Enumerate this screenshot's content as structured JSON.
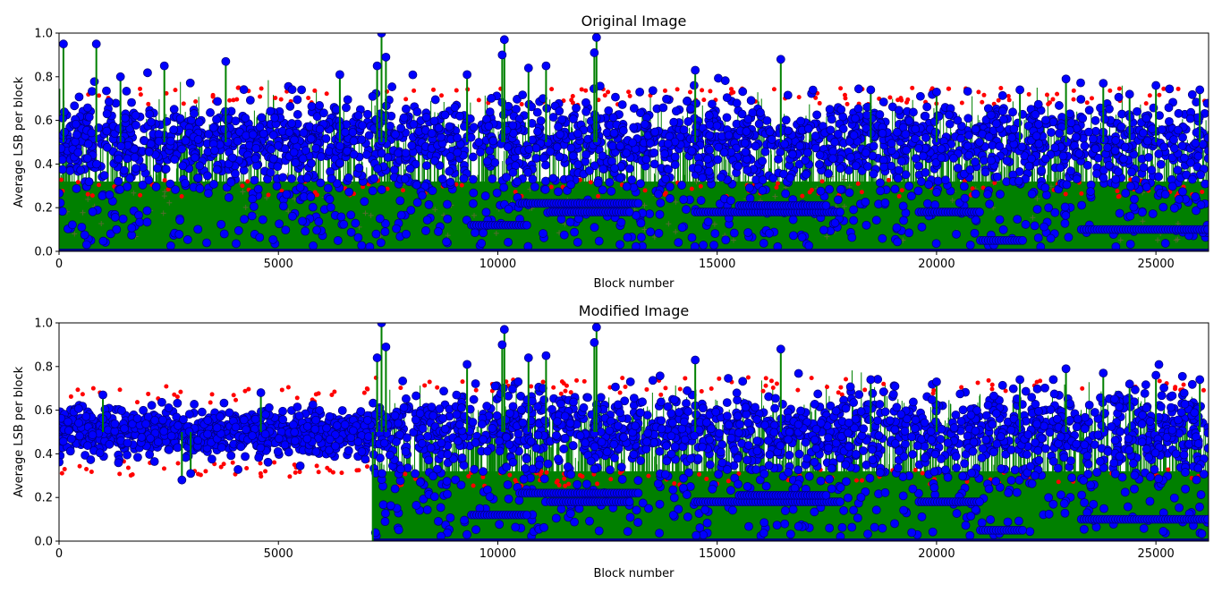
{
  "chart_data": [
    {
      "type": "scatter",
      "title": "Original Image",
      "xlabel": "Block number",
      "ylabel": "Average LSB per block",
      "xlim": [
        0,
        26200
      ],
      "ylim": [
        0,
        1.0
      ],
      "xticks": [
        0,
        5000,
        10000,
        15000,
        20000,
        25000
      ],
      "yticks": [
        0.0,
        0.2,
        0.4,
        0.6,
        0.8,
        1.0
      ],
      "xtick_labels": [
        "0",
        "5000",
        "10000",
        "15000",
        "20000",
        "25000"
      ],
      "ytick_labels": [
        "0.0",
        "0.2",
        "0.4",
        "0.6",
        "0.8",
        "1.0"
      ],
      "grid": false,
      "legend": false,
      "band_center": 0.5,
      "band_halfwidth": 0.17,
      "green_region": [
        0,
        26200
      ],
      "colors": {
        "stem": "#008000",
        "marker_face": "#0000ff",
        "marker_edge": "#000080",
        "accent": "#ff0000",
        "plus": "#556b2f"
      },
      "spikes": [
        [
          7350,
          1.0
        ],
        [
          10150,
          0.97
        ],
        [
          12250,
          0.98
        ],
        [
          850,
          0.95
        ],
        [
          100,
          0.95
        ],
        [
          7450,
          0.89
        ],
        [
          16450,
          0.88
        ],
        [
          12200,
          0.91
        ],
        [
          3800,
          0.87
        ],
        [
          10100,
          0.9
        ],
        [
          7250,
          0.85
        ],
        [
          10700,
          0.84
        ],
        [
          11100,
          0.85
        ],
        [
          14500,
          0.83
        ],
        [
          9300,
          0.81
        ],
        [
          6400,
          0.81
        ],
        [
          22950,
          0.79
        ],
        [
          23800,
          0.77
        ],
        [
          25000,
          0.76
        ],
        [
          20000,
          0.73
        ],
        [
          18500,
          0.74
        ],
        [
          21900,
          0.74
        ],
        [
          24400,
          0.72
        ],
        [
          26000,
          0.74
        ],
        [
          2400,
          0.85
        ],
        [
          1400,
          0.8
        ]
      ],
      "plateaus": [
        [
          9400,
          10700,
          0.12
        ],
        [
          10500,
          13200,
          0.22
        ],
        [
          11200,
          13000,
          0.18
        ],
        [
          14500,
          17800,
          0.18
        ],
        [
          15500,
          17500,
          0.21
        ],
        [
          19600,
          21000,
          0.18
        ],
        [
          23300,
          26200,
          0.1
        ],
        [
          21000,
          22000,
          0.05
        ]
      ],
      "zero_line": [
        0,
        26200
      ]
    },
    {
      "type": "scatter",
      "title": "Modified Image",
      "xlabel": "Block number",
      "ylabel": "Average LSB per block",
      "xlim": [
        0,
        26200
      ],
      "ylim": [
        0,
        1.0
      ],
      "xticks": [
        0,
        5000,
        10000,
        15000,
        20000,
        25000
      ],
      "yticks": [
        0.0,
        0.2,
        0.4,
        0.6,
        0.8,
        1.0
      ],
      "xtick_labels": [
        "0",
        "5000",
        "10000",
        "15000",
        "20000",
        "25000"
      ],
      "ytick_labels": [
        "0.0",
        "0.2",
        "0.4",
        "0.6",
        "0.8",
        "1.0"
      ],
      "grid": false,
      "legend": false,
      "band_center": 0.5,
      "band_halfwidth": 0.17,
      "embedded_range": [
        0,
        7150
      ],
      "embedded_halfwidth": 0.1,
      "green_region": [
        7150,
        26200
      ],
      "colors": {
        "stem": "#008000",
        "marker_face": "#0000ff",
        "marker_edge": "#000080",
        "accent": "#ff0000",
        "plus": "#556b2f"
      },
      "spikes": [
        [
          7350,
          1.0
        ],
        [
          10150,
          0.97
        ],
        [
          12250,
          0.98
        ],
        [
          7450,
          0.89
        ],
        [
          16450,
          0.88
        ],
        [
          12200,
          0.91
        ],
        [
          10100,
          0.9
        ],
        [
          7250,
          0.84
        ],
        [
          10700,
          0.84
        ],
        [
          11100,
          0.85
        ],
        [
          14500,
          0.83
        ],
        [
          9300,
          0.81
        ],
        [
          22950,
          0.79
        ],
        [
          23800,
          0.77
        ],
        [
          25000,
          0.76
        ],
        [
          20000,
          0.73
        ],
        [
          18500,
          0.74
        ],
        [
          21900,
          0.74
        ],
        [
          24400,
          0.72
        ],
        [
          26000,
          0.74
        ],
        [
          1000,
          0.67
        ],
        [
          4600,
          0.68
        ],
        [
          2800,
          0.28
        ],
        [
          3000,
          0.31
        ]
      ],
      "plateaus": [
        [
          9400,
          10700,
          0.12
        ],
        [
          10500,
          13200,
          0.22
        ],
        [
          11200,
          13000,
          0.18
        ],
        [
          14500,
          17800,
          0.18
        ],
        [
          15500,
          17500,
          0.21
        ],
        [
          19600,
          21000,
          0.18
        ],
        [
          23300,
          26200,
          0.1
        ],
        [
          21000,
          22000,
          0.05
        ]
      ],
      "zero_line": [
        7150,
        26200
      ]
    }
  ]
}
